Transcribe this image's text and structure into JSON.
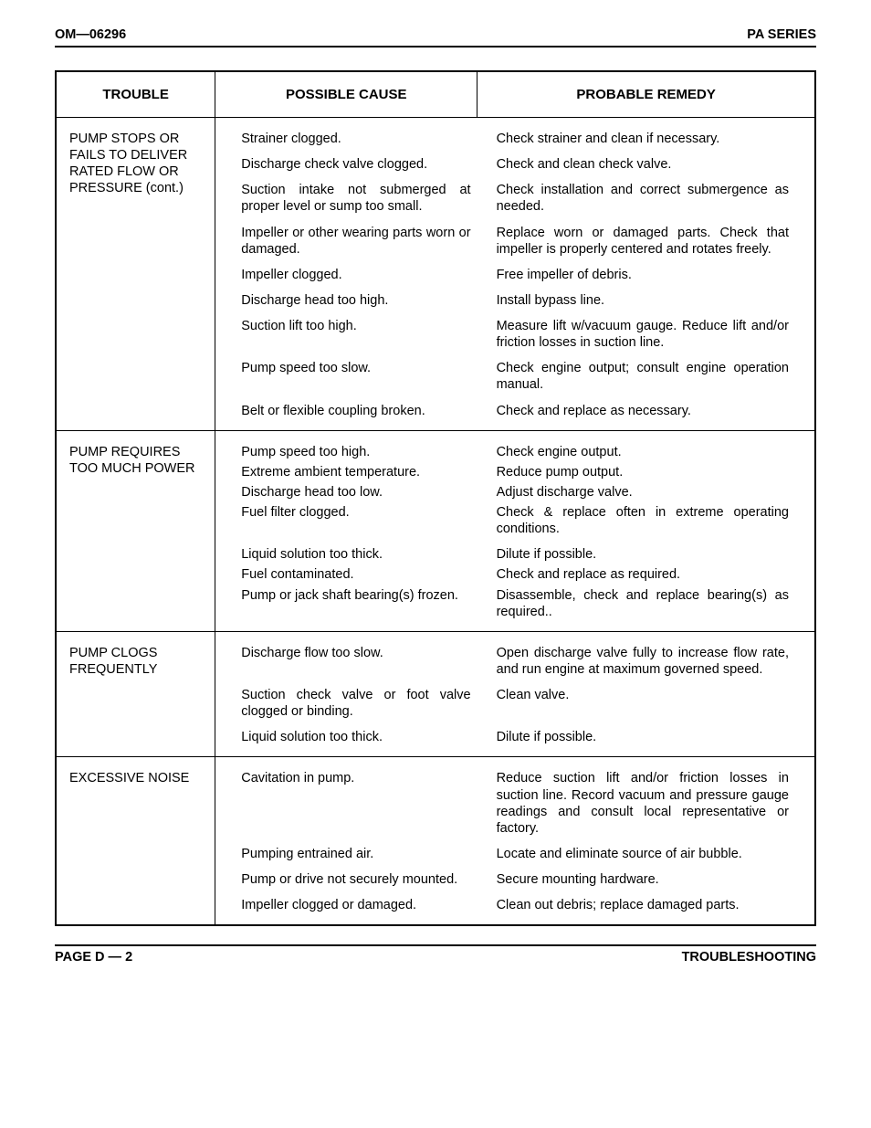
{
  "header": {
    "left": "OM—06296",
    "right": "PA SERIES"
  },
  "footer": {
    "left": "PAGE D — 2",
    "right": "TROUBLESHOOTING"
  },
  "columns": {
    "c1": "TROUBLE",
    "c2": "POSSIBLE CAUSE",
    "c3": "PROBABLE REMEDY"
  },
  "sections": [
    {
      "trouble": "PUMP STOPS OR FAILS TO DELIVER RATED FLOW OR PRESSURE (cont.)",
      "rows": [
        {
          "cause": "Strainer clogged.",
          "remedy": "Check strainer and clean if necessary.",
          "rj": true
        },
        {
          "cause": "Discharge check valve clogged.",
          "remedy": "Check and clean check valve."
        },
        {
          "cause": "Suction intake not submerged at proper level or sump too small.",
          "cj": true,
          "remedy": "Check installation and correct submergence as needed.",
          "rj": true
        },
        {
          "cause": "Impeller or other wearing parts worn or damaged.",
          "cj": true,
          "remedy": "Replace worn or damaged parts. Check that impeller is properly centered and rotates freely.",
          "rj": true
        },
        {
          "cause": "Impeller clogged.",
          "remedy": "Free impeller of debris."
        },
        {
          "cause": "Discharge head too high.",
          "remedy": "Install bypass line."
        },
        {
          "cause": "Suction lift too high.",
          "remedy": "Measure lift w/vacuum gauge. Reduce lift and/or friction losses in suction line.",
          "rj": true
        },
        {
          "cause": "Pump speed too slow.",
          "remedy": "Check engine output; consult engine operation manual.",
          "rj": true
        },
        {
          "cause": "Belt or flexible coupling broken.",
          "remedy": "Check and replace as necessary."
        }
      ]
    },
    {
      "trouble": "PUMP REQUIRES TOO MUCH POWER",
      "rows": [
        {
          "cause": "Pump speed too high.",
          "remedy": "Check engine output."
        },
        {
          "cause": "Extreme ambient temperature.",
          "remedy": "Reduce pump output.",
          "tight": true
        },
        {
          "cause": "Discharge head too low.",
          "remedy": "Adjust discharge valve.",
          "tight": true
        },
        {
          "cause": "Fuel filter clogged.",
          "remedy": "Check & replace often in extreme operating conditions.",
          "rj": true,
          "tight": true
        },
        {
          "cause": "Liquid solution too thick.",
          "remedy": "Dilute if possible."
        },
        {
          "cause": "Fuel contaminated.",
          "remedy": "Check and replace as required.",
          "tight": true
        },
        {
          "cause": "Pump or jack shaft bearing(s) frozen.",
          "remedy": "Disassemble, check and replace bearing(s) as required..",
          "rj": true,
          "tight": true
        }
      ]
    },
    {
      "trouble": "PUMP CLOGS FREQUENTLY",
      "rows": [
        {
          "cause": "Discharge flow too slow.",
          "remedy": "Open discharge valve fully to increase flow rate, and run engine at maximum governed speed.",
          "rj": true
        },
        {
          "cause": "Suction check valve or foot valve clogged or binding.",
          "cj": true,
          "remedy": "Clean valve."
        },
        {
          "cause": "Liquid solution too thick.",
          "remedy": "Dilute if possible."
        }
      ]
    },
    {
      "trouble": "EXCESSIVE NOISE",
      "rows": [
        {
          "cause": "Cavitation in pump.",
          "remedy": "Reduce suction lift and/or friction losses in suction line. Record vacuum and pressure gauge readings and consult local representative or factory.",
          "rj": true
        },
        {
          "cause": "Pumping entrained air.",
          "remedy": "Locate and eliminate source of air bubble.",
          "rj": true
        },
        {
          "cause": "Pump or drive not securely mounted.",
          "remedy": "Secure mounting hardware."
        },
        {
          "cause": "Impeller clogged or damaged.",
          "remedy": "Clean out debris; replace damaged parts.",
          "rj": true
        }
      ]
    }
  ]
}
